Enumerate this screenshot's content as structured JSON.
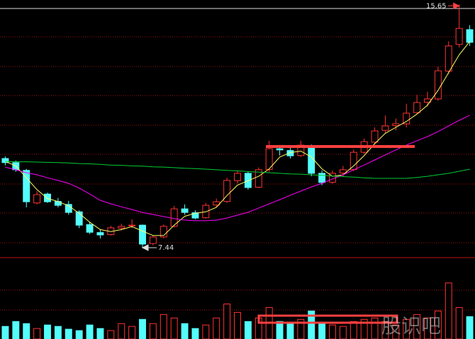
{
  "chart_data": {
    "type": "candlestick",
    "open": [
      10.45,
      10.31,
      10.05,
      8.95,
      9.25,
      9.0,
      8.9,
      8.65,
      8.22,
      7.95,
      7.88,
      8.1,
      8.18,
      8.2,
      7.58,
      7.8,
      8.16,
      8.75,
      8.62,
      8.45,
      8.88,
      9.0,
      9.7,
      9.95,
      9.48,
      10.08,
      10.78,
      10.72,
      10.55,
      10.88,
      9.95,
      9.65,
      9.96,
      10.08,
      10.66,
      11.0,
      11.4,
      11.56,
      11.62,
      12.0,
      12.35,
      12.46,
      13.4,
      14.3,
      14.8
    ],
    "high": [
      10.52,
      10.38,
      10.1,
      9.35,
      9.3,
      9.12,
      9.02,
      8.7,
      8.3,
      8.05,
      8.18,
      8.25,
      8.4,
      8.22,
      7.85,
      8.22,
      8.85,
      8.9,
      8.7,
      8.95,
      9.1,
      9.8,
      10.05,
      10.0,
      10.15,
      11.05,
      10.9,
      10.85,
      11.05,
      10.92,
      10.05,
      10.05,
      10.2,
      10.75,
      11.12,
      11.5,
      11.9,
      11.8,
      12.3,
      12.6,
      12.7,
      13.55,
      14.4,
      15.65,
      14.95
    ],
    "low": [
      10.22,
      10.0,
      8.8,
      8.9,
      8.95,
      8.8,
      8.55,
      8.1,
      7.9,
      7.75,
      7.85,
      8.02,
      8.1,
      7.44,
      7.52,
      7.76,
      8.12,
      8.55,
      8.4,
      8.42,
      8.8,
      8.95,
      9.6,
      9.4,
      9.45,
      10.0,
      10.55,
      10.45,
      10.5,
      9.85,
      9.55,
      9.6,
      9.85,
      10.02,
      10.6,
      10.95,
      11.3,
      11.4,
      11.5,
      11.95,
      12.2,
      12.4,
      13.3,
      14.2,
      14.25
    ],
    "close": [
      10.31,
      10.07,
      8.99,
      9.23,
      8.99,
      8.87,
      8.63,
      8.2,
      7.96,
      7.87,
      8.11,
      8.16,
      8.2,
      7.56,
      7.8,
      8.16,
      8.75,
      8.63,
      8.44,
      8.87,
      8.99,
      9.71,
      9.95,
      9.47,
      10.07,
      10.78,
      10.74,
      10.54,
      10.9,
      9.95,
      9.64,
      9.95,
      10.07,
      10.66,
      11.02,
      11.38,
      11.55,
      11.62,
      11.98,
      12.34,
      12.46,
      13.41,
      14.25,
      14.84,
      14.37
    ],
    "volume": [
      18,
      25,
      22,
      15,
      20,
      18,
      14,
      12,
      20,
      15,
      12,
      22,
      18,
      28,
      22,
      35,
      30,
      22,
      15,
      20,
      30,
      50,
      38,
      25,
      30,
      45,
      25,
      22,
      28,
      40,
      22,
      20,
      18,
      25,
      28,
      30,
      25,
      20,
      28,
      35,
      30,
      40,
      80,
      45,
      32
    ],
    "ylim": [
      7.2,
      15.8
    ],
    "vlim": [
      0,
      100
    ],
    "up_color": "#ff3232",
    "down_color": "#54fcfc",
    "ma": [
      {
        "color": "#ffff66",
        "values": [
          10.35,
          10.2,
          9.8,
          9.4,
          9.1,
          9.0,
          8.85,
          8.6,
          8.3,
          8.05,
          7.98,
          8.05,
          8.15,
          8.0,
          7.85,
          7.85,
          8.2,
          8.5,
          8.6,
          8.65,
          8.8,
          9.2,
          9.55,
          9.7,
          9.85,
          10.1,
          10.5,
          10.65,
          10.7,
          10.5,
          10.1,
          9.85,
          9.9,
          10.2,
          10.55,
          10.95,
          11.3,
          11.5,
          11.7,
          11.95,
          12.25,
          12.75,
          13.35,
          13.95,
          14.4
        ]
      },
      {
        "color": "#ff00ff",
        "values": [
          10.16,
          10.07,
          9.97,
          9.9,
          9.8,
          9.71,
          9.61,
          9.45,
          9.25,
          9.04,
          8.92,
          8.82,
          8.73,
          8.63,
          8.56,
          8.49,
          8.42,
          8.37,
          8.35,
          8.35,
          8.37,
          8.44,
          8.54,
          8.63,
          8.78,
          8.92,
          9.06,
          9.21,
          9.35,
          9.49,
          9.61,
          9.76,
          9.9,
          10.07,
          10.23,
          10.4,
          10.57,
          10.74,
          10.9,
          11.05,
          11.19,
          11.36,
          11.55,
          11.74,
          11.91
        ]
      },
      {
        "color": "#00cc33",
        "values": [
          10.35,
          10.34,
          10.34,
          10.33,
          10.32,
          10.31,
          10.3,
          10.28,
          10.27,
          10.25,
          10.23,
          10.22,
          10.2,
          10.19,
          10.17,
          10.16,
          10.14,
          10.12,
          10.11,
          10.09,
          10.07,
          10.05,
          10.03,
          10.01,
          9.99,
          9.97,
          9.95,
          9.93,
          9.92,
          9.9,
          9.88,
          9.86,
          9.84,
          9.82,
          9.8,
          9.78,
          9.78,
          9.78,
          9.78,
          9.81,
          9.85,
          9.9,
          9.95,
          10.02,
          10.09
        ]
      }
    ],
    "annotations": [
      {
        "label": "7.44",
        "value": 7.44,
        "side": "low"
      },
      {
        "label": "15.65",
        "value": 15.65,
        "side": "high"
      }
    ],
    "watermark": "股识吧"
  }
}
